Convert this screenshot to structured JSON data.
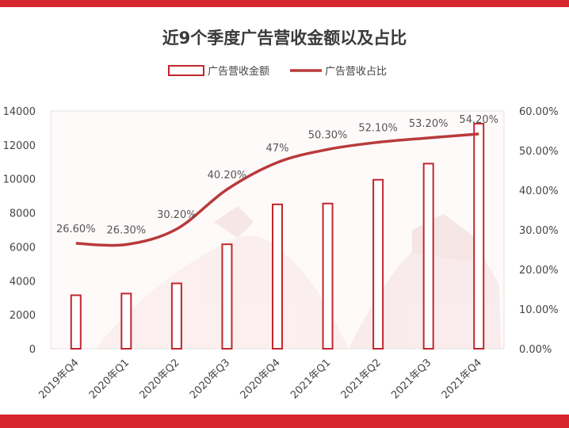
{
  "chart_data": {
    "type": "bar",
    "title": "近9个季度广告营收金额以及占比",
    "categories": [
      "2019年Q4",
      "2020年Q1",
      "2020年Q2",
      "2020年Q3",
      "2020年Q4",
      "2021年Q1",
      "2021年Q2",
      "2021年Q3",
      "2021年Q4"
    ],
    "series": [
      {
        "name": "广告营收金额",
        "type": "bar",
        "axis": "left",
        "values": [
          3150,
          3250,
          3850,
          6150,
          8500,
          8550,
          9950,
          10900,
          13250
        ]
      },
      {
        "name": "广告营收占比",
        "type": "line",
        "axis": "right",
        "values": [
          26.6,
          26.3,
          30.2,
          40.2,
          47,
          50.3,
          52.1,
          53.2,
          54.2
        ],
        "labels": [
          "26.60%",
          "26.30%",
          "30.20%",
          "40.20%",
          "47%",
          "50.30%",
          "52.10%",
          "53.20%",
          "54.20%"
        ]
      }
    ],
    "y_left": {
      "min": 0,
      "max": 14000,
      "ticks": [
        "0",
        "2000",
        "4000",
        "6000",
        "8000",
        "10000",
        "12000",
        "14000"
      ]
    },
    "y_right": {
      "min": 0,
      "max": 60,
      "ticks": [
        "0.00%",
        "10.00%",
        "20.00%",
        "30.00%",
        "40.00%",
        "50.00%",
        "60.00%"
      ]
    },
    "legend_position": "top",
    "grid": false,
    "colors": {
      "bar_stroke": "#c0272d",
      "line": "#b93a3a",
      "accent": "#d7262d"
    }
  }
}
